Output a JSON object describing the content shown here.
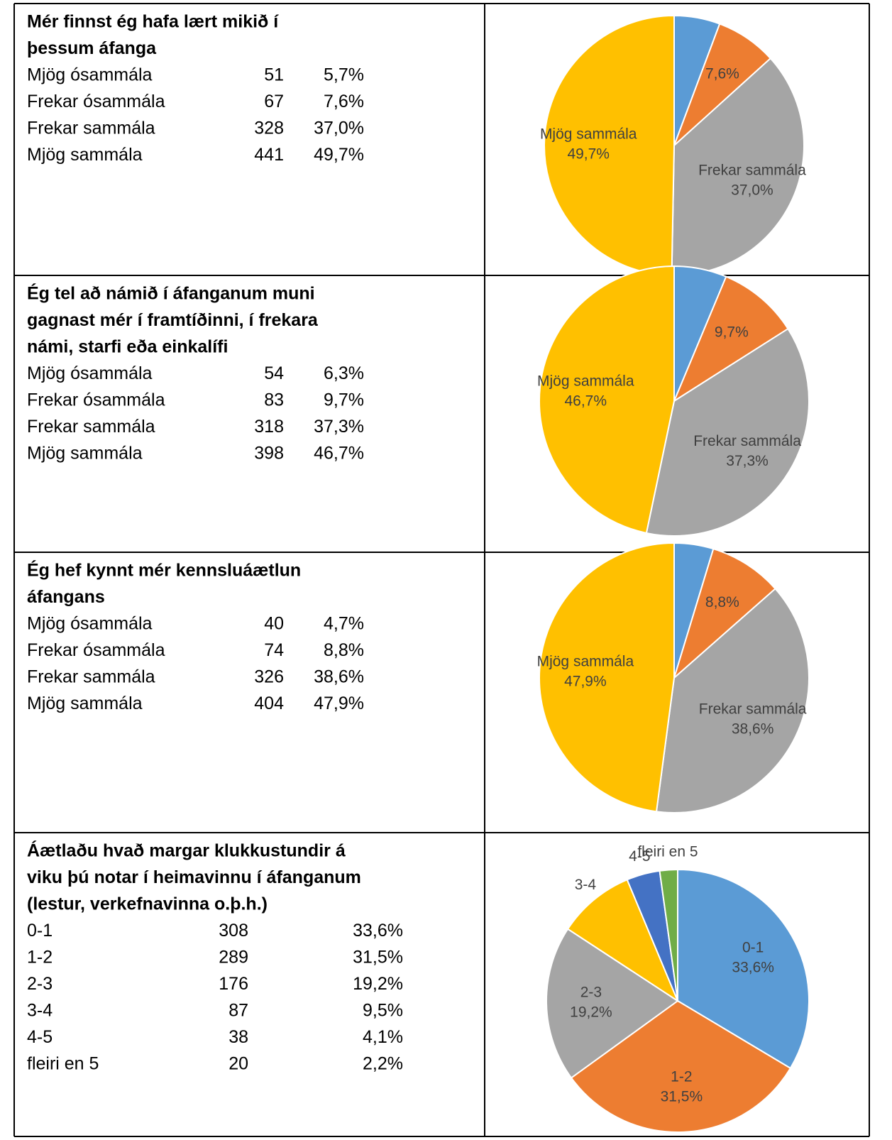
{
  "rows": [
    {
      "question": [
        "Mér finnst ég hafa lært mikið í",
        "þessum áfanga"
      ],
      "counts": [
        51,
        67,
        328,
        441
      ],
      "chart_data": {
        "type": "pie",
        "categories": [
          "Mjög ósammála",
          "Frekar ósammála",
          "Frekar sammála",
          "Mjög sammála"
        ],
        "values": [
          5.7,
          7.6,
          37.0,
          49.7
        ],
        "value_labels": [
          "5,7%",
          "7,6%",
          "37,0%",
          "49,7%"
        ],
        "colors": [
          "#5b9bd5",
          "#ed7d31",
          "#a5a5a5",
          "#ffc000"
        ],
        "show_category": [
          false,
          false,
          true,
          true
        ],
        "show_value": [
          false,
          true,
          true,
          true
        ]
      }
    },
    {
      "question": [
        "Ég tel að námið í áfanganum muni",
        "gagnast mér í framtíðinni, í frekara",
        "námi, starfi eða einkalífi"
      ],
      "counts": [
        54,
        83,
        318,
        398
      ],
      "chart_data": {
        "type": "pie",
        "categories": [
          "Mjög ósammála",
          "Frekar ósammála",
          "Frekar sammála",
          "Mjög sammála"
        ],
        "values": [
          6.3,
          9.7,
          37.3,
          46.7
        ],
        "value_labels": [
          "6,3%",
          "9,7%",
          "37,3%",
          "46,7%"
        ],
        "colors": [
          "#5b9bd5",
          "#ed7d31",
          "#a5a5a5",
          "#ffc000"
        ],
        "show_category": [
          false,
          false,
          true,
          true
        ],
        "show_value": [
          false,
          true,
          true,
          true
        ]
      }
    },
    {
      "question": [
        "Ég hef kynnt mér kennsluáætlun",
        "áfangans"
      ],
      "counts": [
        40,
        74,
        326,
        404
      ],
      "chart_data": {
        "type": "pie",
        "categories": [
          "Mjög ósammála",
          "Frekar ósammála",
          "Frekar sammála",
          "Mjög sammála"
        ],
        "values": [
          4.7,
          8.8,
          38.6,
          47.9
        ],
        "value_labels": [
          "4,7%",
          "8,8%",
          "38,6%",
          "47,9%"
        ],
        "colors": [
          "#5b9bd5",
          "#ed7d31",
          "#a5a5a5",
          "#ffc000"
        ],
        "show_category": [
          false,
          false,
          true,
          true
        ],
        "show_value": [
          false,
          true,
          true,
          true
        ]
      }
    },
    {
      "question": [
        "Áætlaðu hvað margar klukkustundir á",
        "viku þú notar í heimavinnu í áfanganum",
        "(lestur, verkefnavinna o.þ.h.)"
      ],
      "counts": [
        308,
        289,
        176,
        87,
        38,
        20
      ],
      "chart_data": {
        "type": "pie",
        "categories": [
          "0-1",
          "1-2",
          "2-3",
          "3-4",
          "4-5",
          "fleiri en 5"
        ],
        "values": [
          33.6,
          31.5,
          19.2,
          9.5,
          4.1,
          2.2
        ],
        "value_labels": [
          "33,6%",
          "31,5%",
          "19,2%",
          "9,5%",
          "4,1%",
          "2,2%"
        ],
        "colors": [
          "#5b9bd5",
          "#ed7d31",
          "#a5a5a5",
          "#ffc000",
          "#4472c4",
          "#70ad47"
        ],
        "show_category": [
          true,
          true,
          true,
          true,
          true,
          true
        ],
        "show_value": [
          true,
          true,
          true,
          false,
          false,
          false
        ]
      }
    }
  ]
}
